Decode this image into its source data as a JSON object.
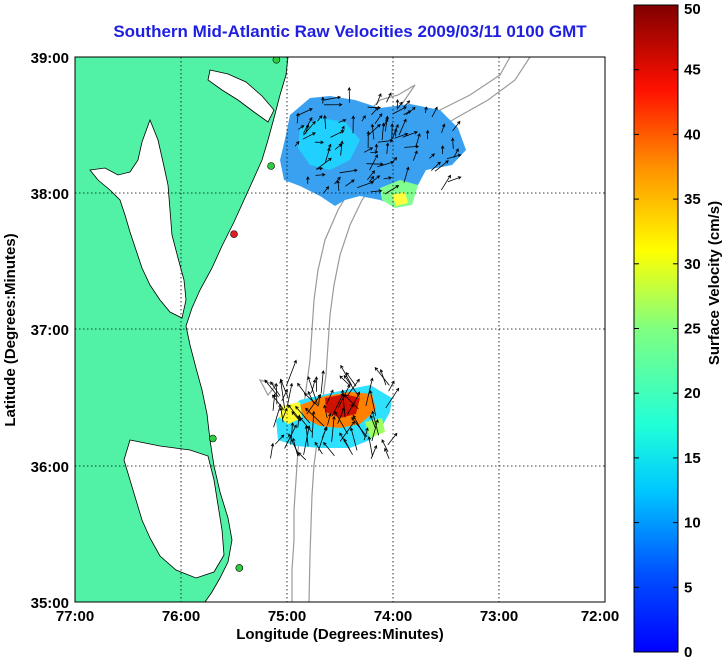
{
  "title": "Southern Mid-Atlantic Raw Velocities 2009/03/11 0100 GMT",
  "x_axis": {
    "label": "Longitude (Degrees:Minutes)",
    "ticks": [
      "77:00",
      "76:00",
      "75:00",
      "74:00",
      "73:00",
      "72:00"
    ]
  },
  "y_axis": {
    "label": "Latitude (Degrees:Minutes)",
    "ticks": [
      "39:00",
      "38:00",
      "37:00",
      "36:00",
      "35:00"
    ]
  },
  "colorbar": {
    "label": "Surface Velocity (cm/s)",
    "ticks": [
      "0",
      "5",
      "10",
      "15",
      "20",
      "25",
      "30",
      "35",
      "40",
      "45",
      "50"
    ],
    "min": 0,
    "max": 50,
    "colormap": "jet"
  },
  "colors": {
    "title": "#1f1fe0",
    "land": "#52f2a6",
    "bathymetry": "#9a9a9a",
    "grid": "#000000"
  },
  "extent": {
    "lon": [
      -77,
      -72
    ],
    "lat": [
      35,
      39
    ]
  },
  "stations": [
    {
      "lon": -75.1,
      "lat": 38.98,
      "color": "#2ecc40"
    },
    {
      "lon": -75.15,
      "lat": 38.2,
      "color": "#2ecc40"
    },
    {
      "lon": -75.5,
      "lat": 37.7,
      "color": "#e02020"
    },
    {
      "lon": -75.7,
      "lat": 36.2,
      "color": "#2ecc40"
    },
    {
      "lon": -75.45,
      "lat": 35.25,
      "color": "#2ecc40"
    }
  ]
}
